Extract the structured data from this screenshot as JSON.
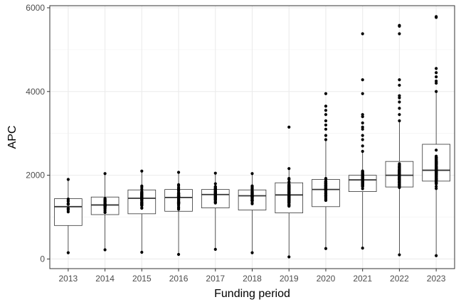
{
  "chart_data": {
    "type": "box",
    "xlabel": "Funding period",
    "ylabel": "APC",
    "ylim": [
      -230,
      6050
    ],
    "yticks": [
      0,
      2000,
      4000,
      6000
    ],
    "categories": [
      "2013",
      "2014",
      "2015",
      "2016",
      "2017",
      "2018",
      "2019",
      "2020",
      "2021",
      "2022",
      "2023"
    ],
    "grid": true,
    "boxes": [
      {
        "q1": 800,
        "median": 1250,
        "q3": 1440,
        "whisker_low": 150,
        "whisker_high": 1900
      },
      {
        "q1": 1060,
        "median": 1290,
        "q3": 1480,
        "whisker_low": 220,
        "whisker_high": 2040
      },
      {
        "q1": 1080,
        "median": 1450,
        "q3": 1650,
        "whisker_low": 160,
        "whisker_high": 2100
      },
      {
        "q1": 1140,
        "median": 1470,
        "q3": 1660,
        "whisker_low": 110,
        "whisker_high": 2070
      },
      {
        "q1": 1220,
        "median": 1540,
        "q3": 1660,
        "whisker_low": 230,
        "whisker_high": 2050
      },
      {
        "q1": 1170,
        "median": 1510,
        "q3": 1650,
        "whisker_low": 150,
        "whisker_high": 2040
      },
      {
        "q1": 1100,
        "median": 1530,
        "q3": 1820,
        "whisker_low": 50,
        "whisker_high": 2160
      },
      {
        "q1": 1250,
        "median": 1660,
        "q3": 1900,
        "whisker_low": 250,
        "whisker_high": 2850
      },
      {
        "q1": 1610,
        "median": 1890,
        "q3": 2000,
        "whisker_low": 260,
        "whisker_high": 2570
      },
      {
        "q1": 1720,
        "median": 2000,
        "q3": 2330,
        "whisker_low": 100,
        "whisker_high": 3300
      },
      {
        "q1": 1860,
        "median": 2120,
        "q3": 2740,
        "whisker_low": 80,
        "whisker_high": 4000
      }
    ],
    "outliers": [
      [],
      [],
      [],
      [],
      [],
      [],
      [
        3150
      ],
      [
        2950,
        3100,
        3200,
        3300,
        3450,
        3550,
        3650,
        3950
      ],
      [
        2700,
        2850,
        2950,
        3100,
        3150,
        3250,
        3400,
        3450,
        3950,
        4280,
        5380
      ],
      [
        3450,
        3600,
        3750,
        3850,
        3900,
        4150,
        4280,
        5380,
        5560,
        5580
      ],
      [
        4200,
        4250,
        4350,
        4450,
        4550,
        5770,
        5790
      ]
    ],
    "point_density": [
      10,
      40,
      60,
      70,
      80,
      70,
      90,
      90,
      100,
      120,
      140
    ]
  }
}
